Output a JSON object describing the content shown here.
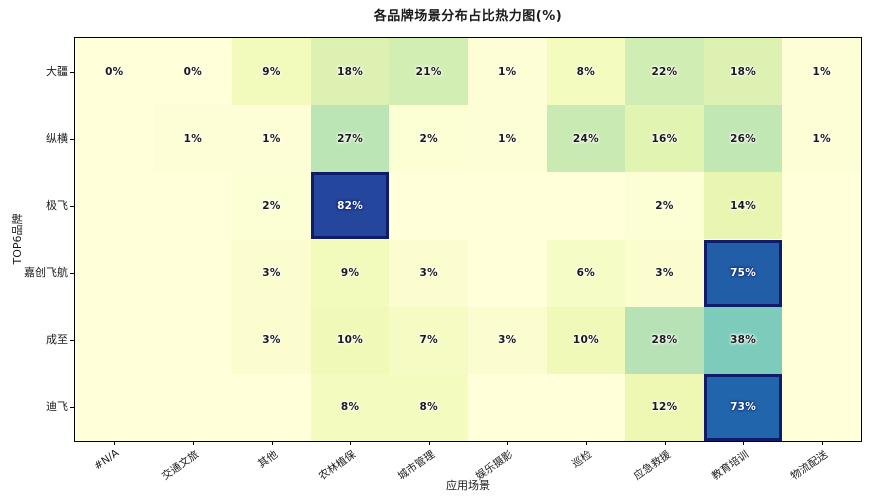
{
  "chart_data": {
    "type": "heatmap",
    "title": "各品牌场景分布占比热力图(%)",
    "xlabel": "应用场景",
    "ylabel": "TOP6品牌",
    "x_categories": [
      "#N/A",
      "交通文旅",
      "其他",
      "农林植保",
      "城市管理",
      "娱乐摄影",
      "巡检",
      "应急救援",
      "教育培训",
      "物流配送"
    ],
    "y_categories": [
      "大疆",
      "纵横",
      "极飞",
      "嘉创飞航",
      "成至",
      "迪飞"
    ],
    "values_percent": [
      [
        0,
        0,
        9,
        18,
        21,
        1,
        8,
        22,
        18,
        1
      ],
      [
        null,
        1,
        1,
        27,
        2,
        1,
        24,
        16,
        26,
        1
      ],
      [
        null,
        null,
        2,
        82,
        null,
        null,
        null,
        2,
        14,
        null
      ],
      [
        null,
        null,
        3,
        9,
        3,
        null,
        6,
        3,
        75,
        null
      ],
      [
        null,
        null,
        3,
        10,
        7,
        3,
        10,
        28,
        38,
        null
      ],
      [
        null,
        null,
        null,
        8,
        8,
        null,
        null,
        12,
        73,
        null
      ]
    ],
    "cell_labels": [
      [
        "0%",
        "0%",
        "9%",
        "18%",
        "21%",
        "1%",
        "8%",
        "22%",
        "18%",
        "1%"
      ],
      [
        "",
        "1%",
        "1%",
        "27%",
        "2%",
        "1%",
        "24%",
        "16%",
        "26%",
        "1%"
      ],
      [
        "",
        "",
        "2%",
        "82%",
        "",
        "",
        "",
        "2%",
        "14%",
        ""
      ],
      [
        "",
        "",
        "3%",
        "9%",
        "3%",
        "",
        "6%",
        "3%",
        "75%",
        ""
      ],
      [
        "",
        "",
        "3%",
        "10%",
        "7%",
        "3%",
        "10%",
        "28%",
        "38%",
        ""
      ],
      [
        "",
        "",
        "",
        "8%",
        "8%",
        "",
        "",
        "12%",
        "73%",
        ""
      ]
    ],
    "value_range": [
      0,
      100
    ],
    "colormap": {
      "name": "YlGnBu",
      "stops": [
        [
          0,
          "#ffffd9"
        ],
        [
          0.125,
          "#edf8b1"
        ],
        [
          0.25,
          "#c7e9b4"
        ],
        [
          0.375,
          "#7fcdbb"
        ],
        [
          0.5,
          "#41b6c4"
        ],
        [
          0.625,
          "#1d91c0"
        ],
        [
          0.75,
          "#225ea8"
        ],
        [
          0.875,
          "#253494"
        ],
        [
          1,
          "#081d58"
        ]
      ]
    },
    "highlight": {
      "min_value": 70,
      "border_color": "#101c6a"
    },
    "text_colors": {
      "dark": "#1a1a1a",
      "light": "#ffffff",
      "light_text_min_value": 60
    },
    "axis_color": "#000000",
    "grid": false,
    "legend": "none"
  }
}
